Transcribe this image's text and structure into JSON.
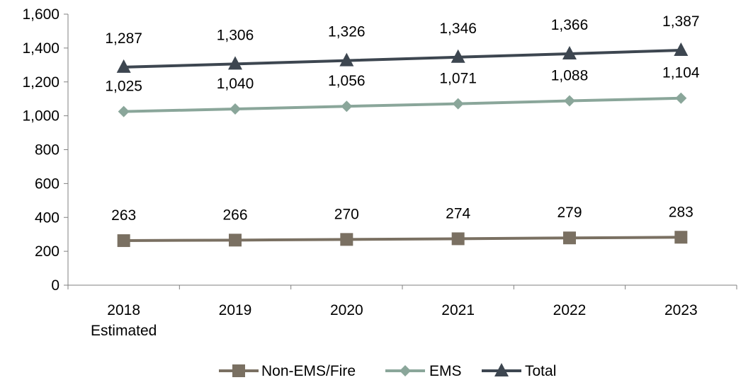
{
  "chart_data": {
    "type": "line",
    "categories": [
      "2018\nEstimated",
      "2019",
      "2020",
      "2021",
      "2022",
      "2023"
    ],
    "series": [
      {
        "name": "Non-EMS/Fire",
        "values": [
          263,
          266,
          270,
          274,
          279,
          283
        ],
        "color": "#7a7062",
        "marker": "square"
      },
      {
        "name": "EMS",
        "values": [
          1025,
          1040,
          1056,
          1071,
          1088,
          1104
        ],
        "color": "#8aa69a",
        "marker": "diamond"
      },
      {
        "name": "Total",
        "values": [
          1287,
          1306,
          1326,
          1346,
          1366,
          1387
        ],
        "color": "#3d4650",
        "marker": "triangle"
      }
    ],
    "ylim": [
      0,
      1600
    ],
    "yticks": [
      0,
      200,
      400,
      600,
      800,
      1000,
      1200,
      1400,
      1600
    ],
    "ytick_labels": [
      "0",
      "200",
      "400",
      "600",
      "800",
      "1,000",
      "1,200",
      "1,400",
      "1,600"
    ],
    "data_labels": [
      [
        "263",
        "266",
        "270",
        "274",
        "279",
        "283"
      ],
      [
        "1,025",
        "1,040",
        "1,056",
        "1,071",
        "1,088",
        "1,104"
      ],
      [
        "1,287",
        "1,306",
        "1,326",
        "1,346",
        "1,366",
        "1,387"
      ]
    ],
    "grid": false,
    "legend": "bottom-center"
  }
}
